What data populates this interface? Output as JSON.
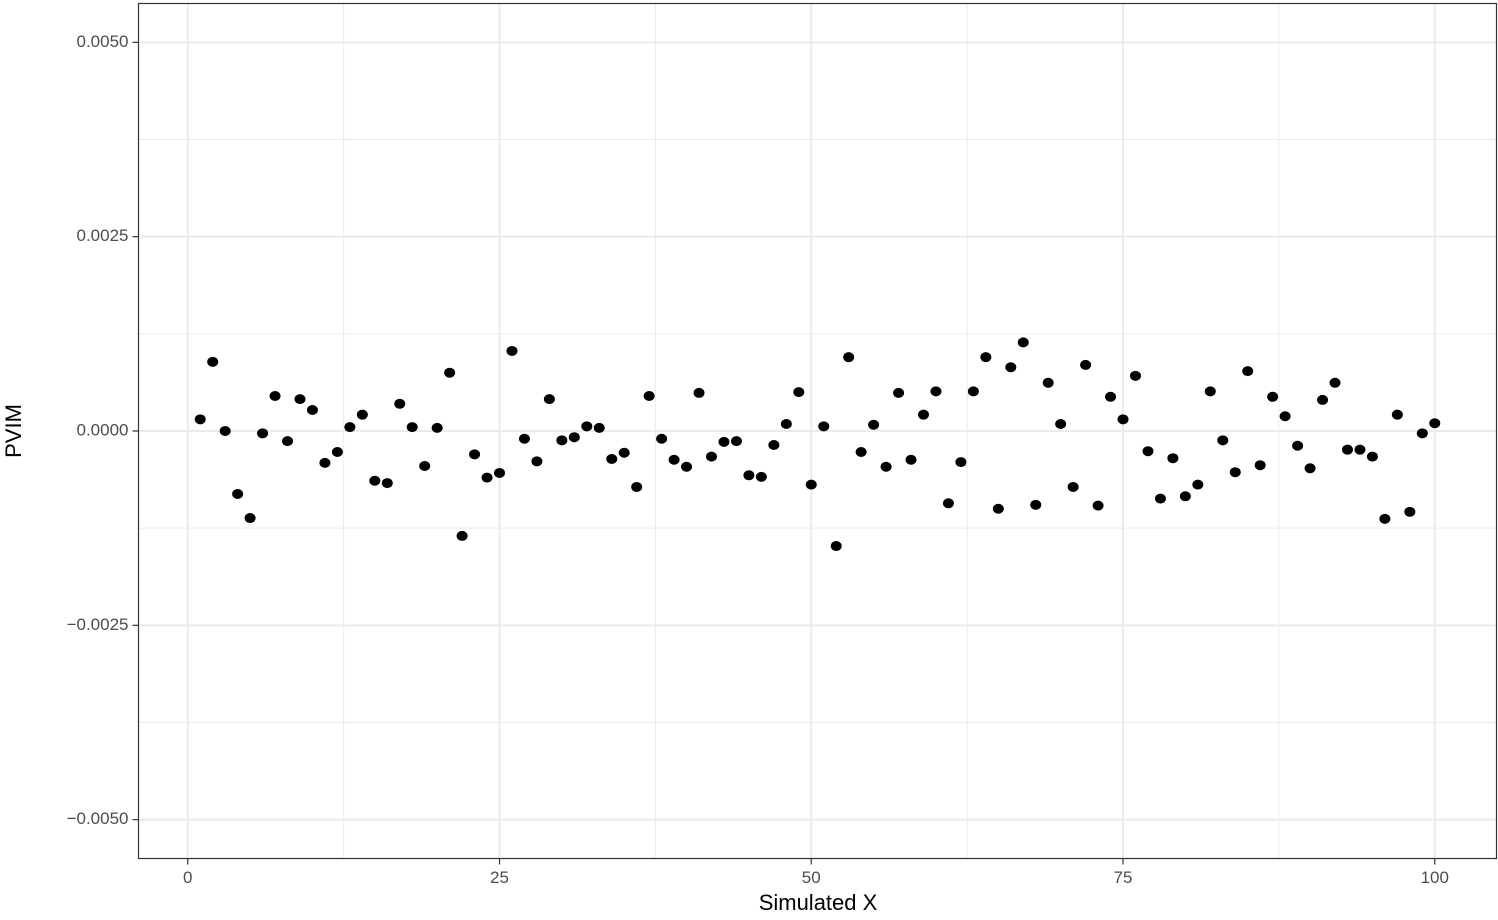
{
  "chart_data": {
    "type": "scatter",
    "x_label": "Simulated X",
    "y_label": "PVIM",
    "x": [
      1,
      2,
      3,
      4,
      5,
      6,
      7,
      8,
      9,
      10,
      11,
      12,
      13,
      14,
      15,
      16,
      17,
      18,
      19,
      20,
      21,
      22,
      23,
      24,
      25,
      26,
      27,
      28,
      29,
      30,
      31,
      32,
      33,
      34,
      35,
      36,
      37,
      38,
      39,
      40,
      41,
      42,
      43,
      44,
      45,
      46,
      47,
      48,
      49,
      50,
      51,
      52,
      53,
      54,
      55,
      56,
      57,
      58,
      59,
      60,
      61,
      62,
      63,
      64,
      65,
      66,
      67,
      68,
      69,
      70,
      71,
      72,
      73,
      74,
      75,
      76,
      77,
      78,
      79,
      80,
      81,
      82,
      83,
      84,
      85,
      86,
      87,
      88,
      89,
      90,
      91,
      92,
      93,
      94,
      95,
      96,
      97,
      98,
      99,
      100
    ],
    "values": [
      0.00015,
      0.00089,
      0.0,
      -0.00081,
      -0.00112,
      -3e-05,
      0.00045,
      -0.00013,
      0.00041,
      0.00027,
      -0.00041,
      -0.00027,
      5e-05,
      0.00021,
      -0.00064,
      -0.00067,
      0.00035,
      5e-05,
      -0.00045,
      4e-05,
      0.00075,
      -0.00135,
      -0.0003,
      -0.0006,
      -0.00054,
      0.00103,
      -0.0001,
      -0.00039,
      0.00041,
      -0.00012,
      -8e-05,
      6e-05,
      4e-05,
      -0.00036,
      -0.00028,
      -0.00072,
      0.00045,
      -0.0001,
      -0.00037,
      -0.00046,
      0.00049,
      -0.00033,
      -0.00014,
      -0.00013,
      -0.00057,
      -0.00059,
      -0.00018,
      9e-05,
      0.0005,
      -0.00069,
      6e-05,
      -0.00148,
      0.00095,
      -0.00027,
      8e-05,
      -0.00046,
      0.00049,
      -0.00037,
      0.00021,
      0.00051,
      -0.00093,
      -0.0004,
      0.00051,
      0.00095,
      -0.001,
      0.00082,
      0.00114,
      -0.00095,
      0.00062,
      9e-05,
      -0.00072,
      0.00085,
      -0.00096,
      0.00044,
      0.00015,
      0.00071,
      -0.00026,
      -0.00087,
      -0.00035,
      -0.00084,
      -0.00069,
      0.00051,
      -0.00012,
      -0.00053,
      0.00077,
      -0.00044,
      0.00044,
      0.00019,
      -0.00019,
      -0.00048,
      0.0004,
      0.00062,
      -0.00024,
      -0.00024,
      -0.00033,
      -0.00113,
      0.00021,
      -0.00104,
      -3e-05,
      0.0001
    ],
    "color": "#000000",
    "xlim": [
      -3.95,
      104.95
    ],
    "ylim": [
      -0.0055,
      0.0055
    ],
    "xticks": [
      0,
      25,
      50,
      75,
      100
    ],
    "yticks": [
      {
        "value": -0.005,
        "label": "−0.0050"
      },
      {
        "value": -0.0025,
        "label": "−0.0025"
      },
      {
        "value": 0,
        "label": "0.0000"
      },
      {
        "value": 0.0025,
        "label": "0.0025"
      },
      {
        "value": 0.005,
        "label": "0.0050"
      }
    ],
    "x_minor_grid": [
      12.5,
      37.5,
      62.5,
      87.5
    ],
    "y_minor_grid": [
      -0.00375,
      -0.00125,
      0.00125,
      0.00375
    ],
    "grid": true
  }
}
